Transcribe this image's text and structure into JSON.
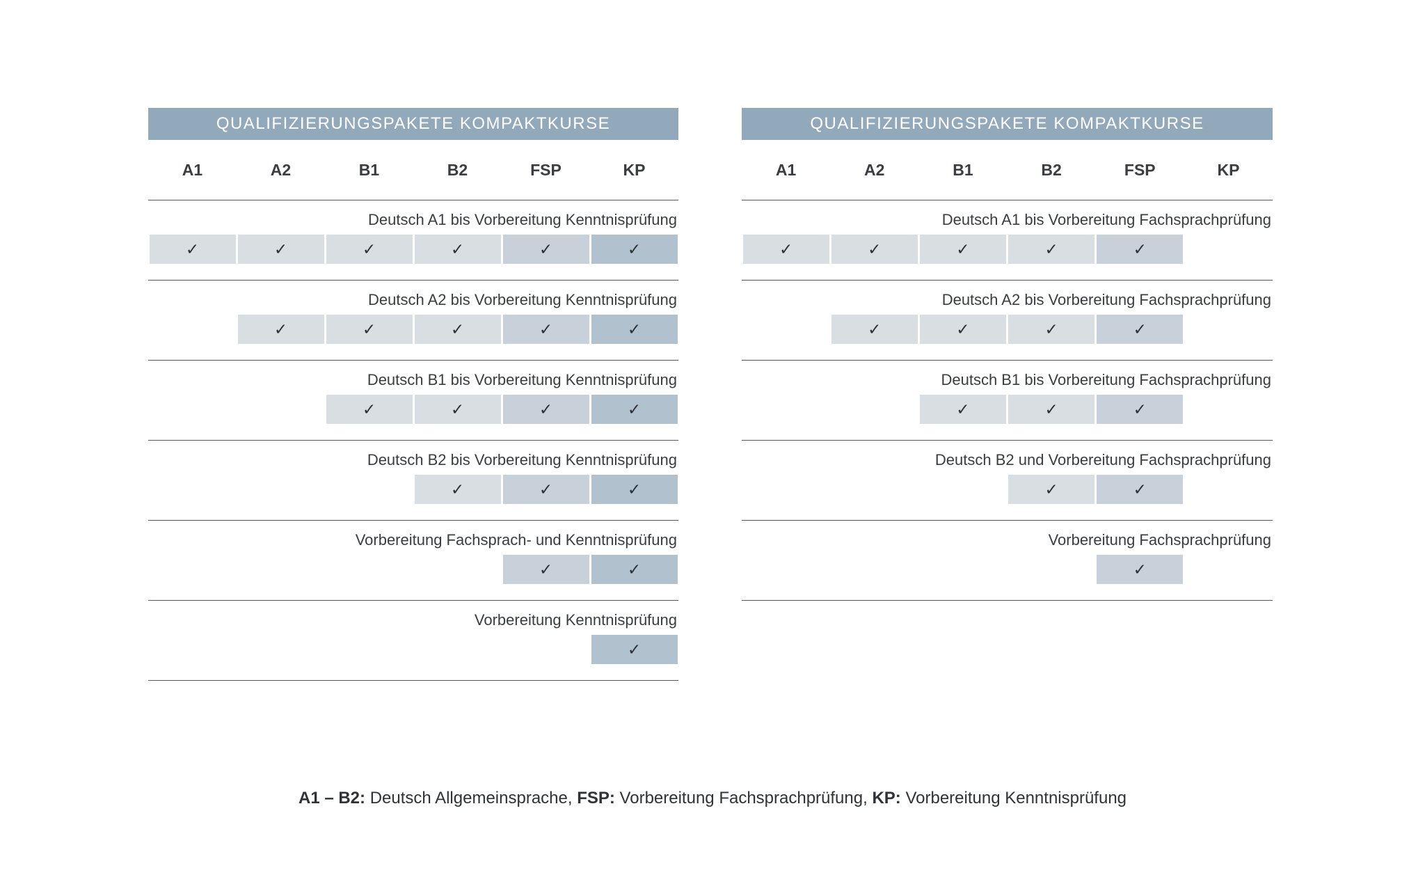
{
  "palette": {
    "header_bar_bg": "#92A8BB",
    "title_text": "#FFFFFF",
    "cell_light": "#D9DEE3",
    "cell_medium": "#C8D1DA",
    "cell_dark": "#B2C1CE",
    "separator_line": "#55585C",
    "text": "#3A3D41",
    "check": "#2C3135"
  },
  "check_glyph": "✓",
  "chart_data": [
    {
      "type": "table",
      "title": "QUALIFIZIERUNGSPAKETE KOMPAKTKURSE",
      "columns": [
        "A1",
        "A2",
        "B1",
        "B2",
        "FSP",
        "KP"
      ],
      "rows": [
        {
          "label": "Deutsch A1 bis Vorbereitung Kenntnisprüfung",
          "cells": [
            "light",
            "light",
            "light",
            "light",
            "medium",
            "dark"
          ]
        },
        {
          "label": "Deutsch A2 bis Vorbereitung Kenntnisprüfung",
          "cells": [
            null,
            "light",
            "light",
            "light",
            "medium",
            "dark"
          ]
        },
        {
          "label": "Deutsch B1 bis Vorbereitung Kenntnisprüfung",
          "cells": [
            null,
            null,
            "light",
            "light",
            "medium",
            "dark"
          ]
        },
        {
          "label": "Deutsch B2 bis Vorbereitung Kenntnisprüfung",
          "cells": [
            null,
            null,
            null,
            "light",
            "medium",
            "dark"
          ]
        },
        {
          "label": "Vorbereitung Fachsprach- und Kenntnisprüfung",
          "cells": [
            null,
            null,
            null,
            null,
            "medium",
            "dark"
          ]
        },
        {
          "label": "Vorbereitung Kenntnisprüfung",
          "cells": [
            null,
            null,
            null,
            null,
            null,
            "dark"
          ]
        }
      ]
    },
    {
      "type": "table",
      "title": "QUALIFIZIERUNGSPAKETE KOMPAKTKURSE",
      "columns": [
        "A1",
        "A2",
        "B1",
        "B2",
        "FSP",
        "KP"
      ],
      "rows": [
        {
          "label": "Deutsch A1 bis Vorbereitung Fachsprachprüfung",
          "cells": [
            "light",
            "light",
            "light",
            "light",
            "medium",
            null
          ]
        },
        {
          "label": "Deutsch A2 bis Vorbereitung Fachsprachprüfung",
          "cells": [
            null,
            "light",
            "light",
            "light",
            "medium",
            null
          ]
        },
        {
          "label": "Deutsch B1 bis Vorbereitung Fachsprachprüfung",
          "cells": [
            null,
            null,
            "light",
            "light",
            "medium",
            null
          ]
        },
        {
          "label": "Deutsch B2 und Vorbereitung Fachsprachprüfung",
          "cells": [
            null,
            null,
            null,
            "light",
            "medium",
            null
          ]
        },
        {
          "label": "Vorbereitung Fachsprachprüfung",
          "cells": [
            null,
            null,
            null,
            null,
            "medium",
            null
          ]
        }
      ]
    }
  ],
  "legend": {
    "segments": [
      {
        "term": "A1 – B2:",
        "definition": " Deutsch Allgemeinsprache, "
      },
      {
        "term": "FSP:",
        "definition": " Vorbereitung Fachsprachprüfung, "
      },
      {
        "term": "KP:",
        "definition": " Vorbereitung Kenntnisprüfung"
      }
    ]
  }
}
